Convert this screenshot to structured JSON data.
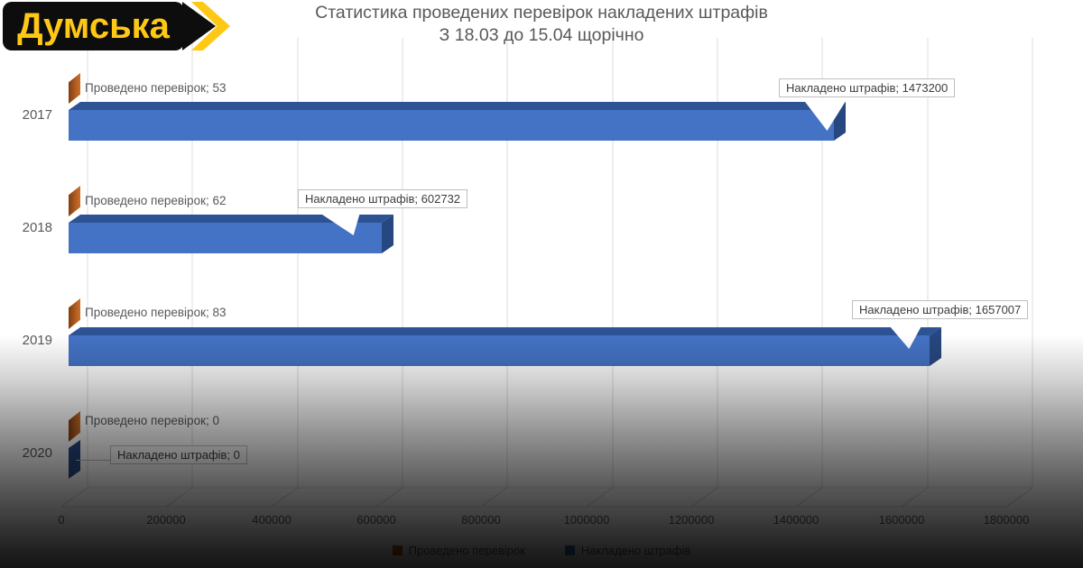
{
  "logo": {
    "text": "Думська"
  },
  "title": {
    "line1": "Статистика проведених перевірок накладених штрафів",
    "line2": "З 18.03 до 15.04 щорічно"
  },
  "chart_data": {
    "type": "bar",
    "orientation": "horizontal",
    "style": "3d",
    "title": "Статистика проведених перевірок накладених штрафів З 18.03 до 15.04 щорічно",
    "categories": [
      "2017",
      "2018",
      "2019",
      "2020"
    ],
    "series": [
      {
        "name": "Проведено перевірок",
        "color": "#C55A11",
        "values": [
          53,
          62,
          83,
          0
        ]
      },
      {
        "name": "Накладено штрафів",
        "color": "#4472C4",
        "values": [
          1473200,
          602732,
          1657007,
          0
        ]
      }
    ],
    "x_ticks": [
      "0",
      "200000",
      "400000",
      "600000",
      "800000",
      "1000000",
      "1200000",
      "1400000",
      "1600000",
      "1800000"
    ],
    "xlim": [
      0,
      1800000
    ],
    "grid": true,
    "legend_position": "bottom",
    "data_labels": {
      "inspections": [
        "Проведено перевірок; 53",
        "Проведено перевірок; 62",
        "Проведено перевірок; 83",
        "Проведено перевірок; 0"
      ],
      "fines": [
        "Накладено штрафів; 1473200",
        "Накладено штрафів; 602732",
        "Накладено штрафів; 1657007",
        "Накладено штрафів; 0"
      ]
    }
  },
  "colors": {
    "bar_front": "#4472C4",
    "bar_top": "#2E5395",
    "bar_side": "#26477F",
    "orange_dark": "#7E3D10",
    "orange_light": "#C9702B",
    "logo_black": "#0D0D0D",
    "logo_yellow": "#FFC814",
    "text_gray": "#595959",
    "callout_border": "#BFBFBF"
  }
}
